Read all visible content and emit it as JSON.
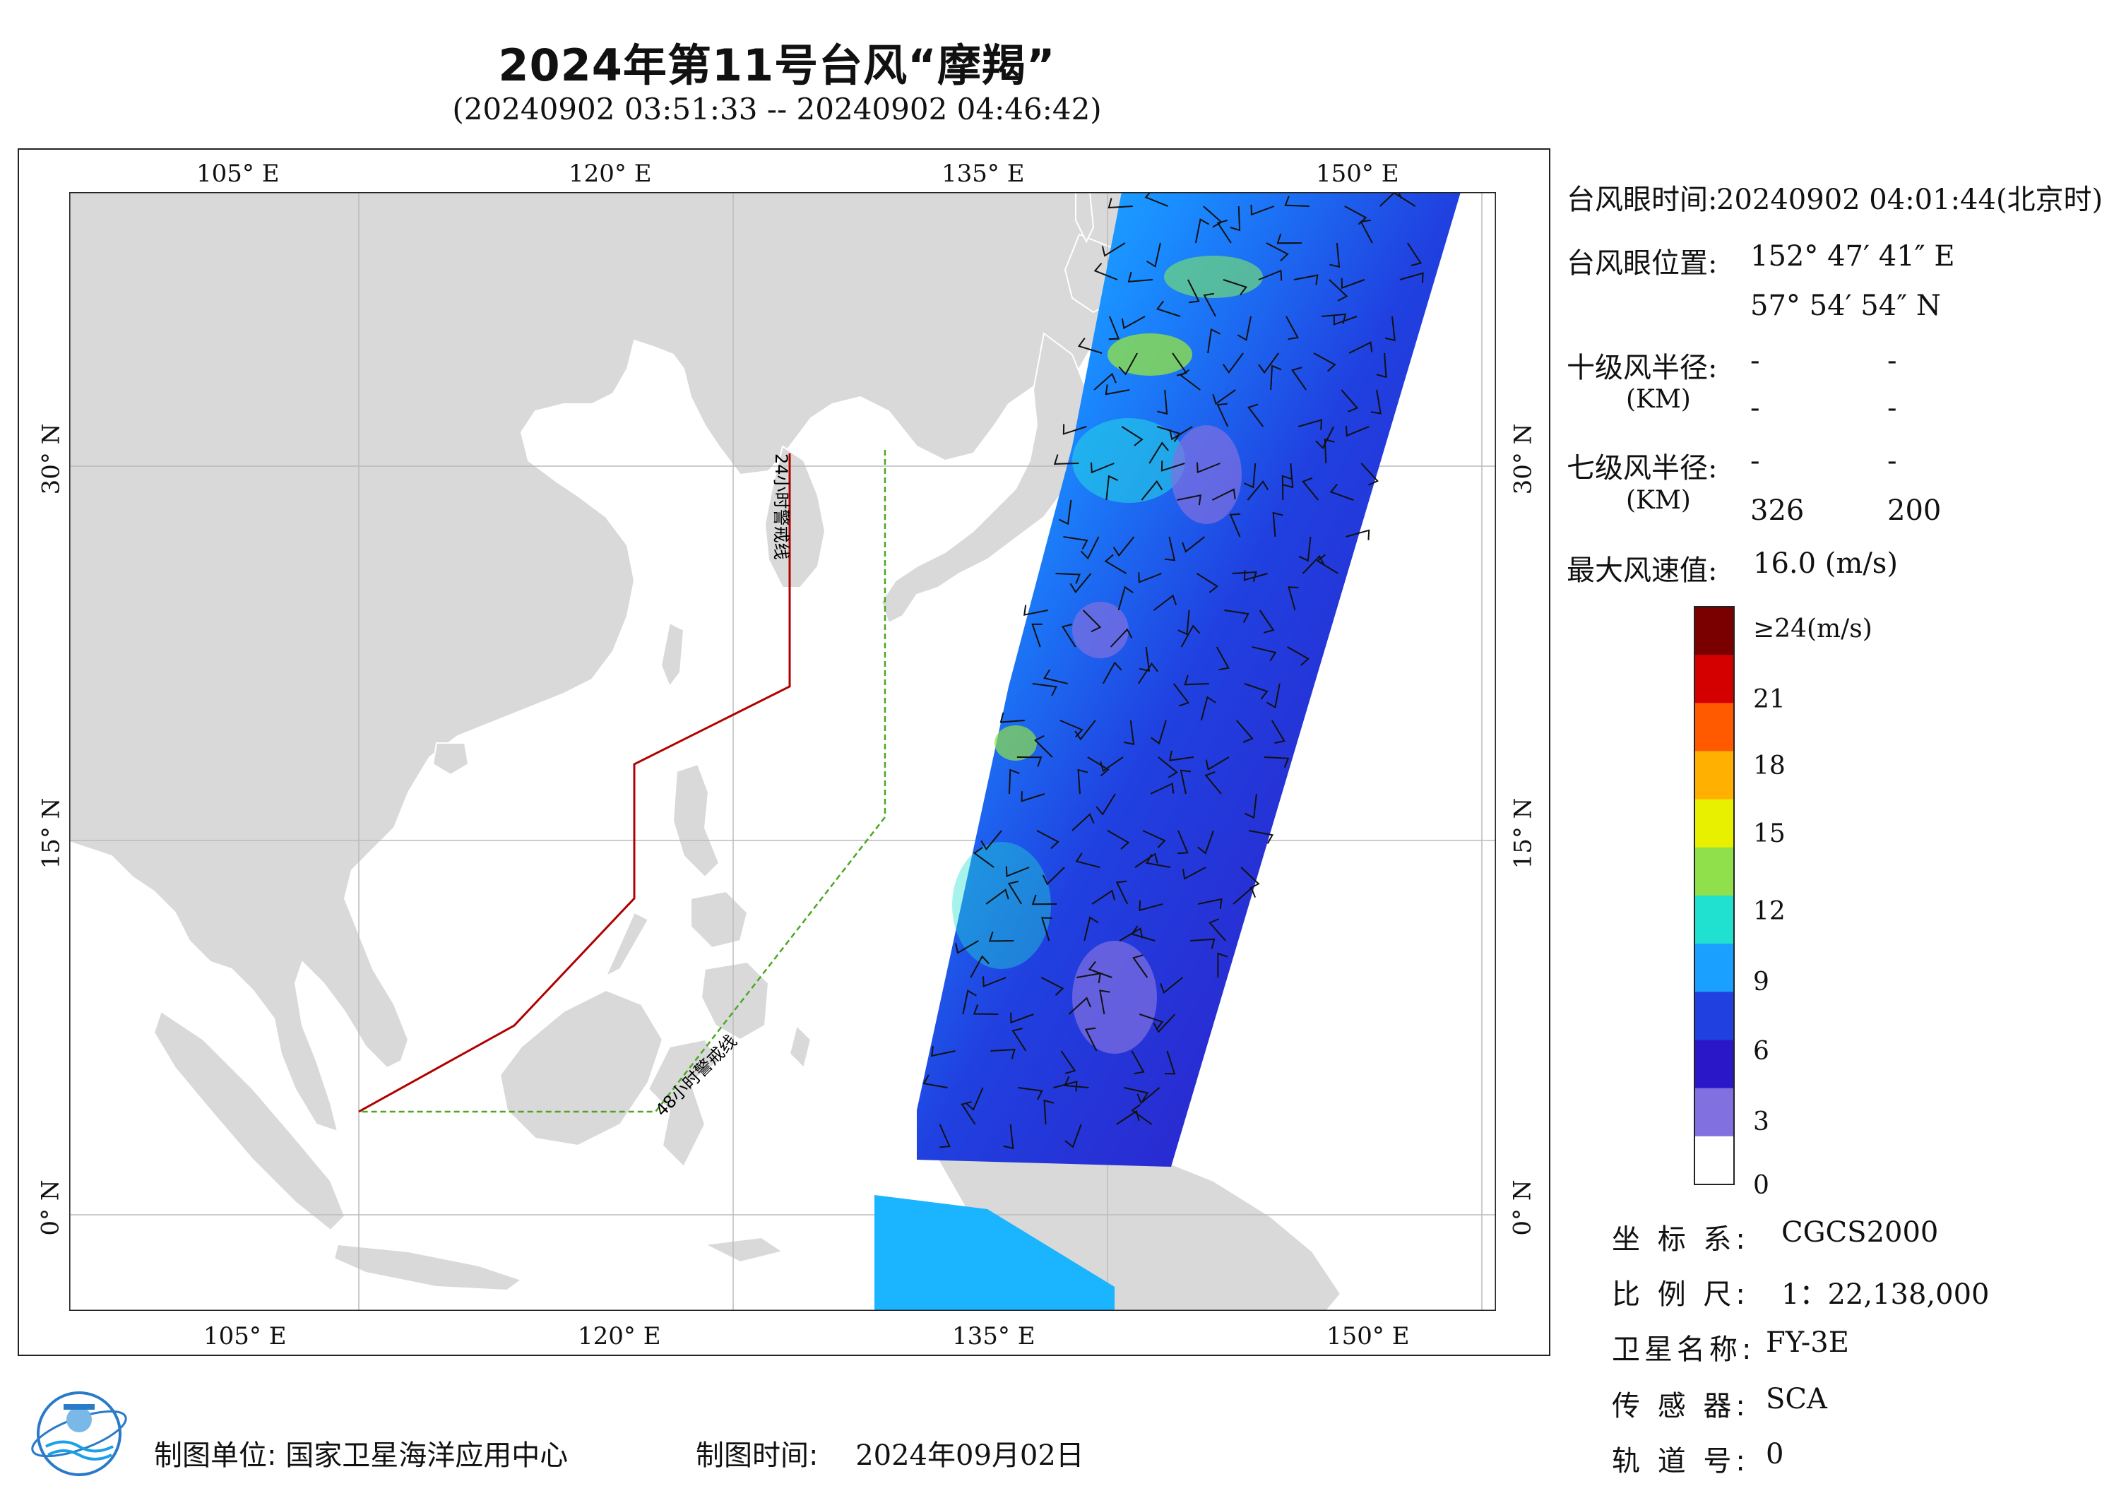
{
  "title": "2024年第11号台风“摩羯”",
  "subtitle": "(20240902 03:51:33 -- 20240902 04:46:42)",
  "map": {
    "lon_ticks_top": [
      "105° E",
      "120° E",
      "135° E",
      "150° E"
    ],
    "lon_ticks_bottom": [
      "105° E",
      "120° E",
      "135° E",
      "150° E"
    ],
    "lat_ticks_left": [
      "30° N",
      "15° N",
      "0° N"
    ],
    "lat_ticks_right": [
      "30° N",
      "15° N",
      "0° N"
    ],
    "warning_24h_label": "24小时警戒线",
    "warning_48h_label": "48小时警戒线",
    "colors": {
      "land": "#d9d9d9",
      "sea": "#ffffff",
      "warning_24h": "#b00000",
      "warning_48h": "#4aa820",
      "wind_low": "#3a2bd6",
      "wind_mid": "#1ec8ff",
      "wind_high": "#f4e41c"
    }
  },
  "typhoon_info": {
    "eye_time_label": "台风眼时间:",
    "eye_time_value": "20240902 04:01:44(北京时)",
    "eye_pos_label": "台风眼位置:",
    "eye_lon": "152° 47′ 41″ E",
    "eye_lat": "57° 54′ 54″ N",
    "r10_label": "十级风半径:",
    "r10_unit": "(KM)",
    "r10_vals": [
      "-",
      "-",
      "-",
      "-"
    ],
    "r7_label": "七级风半径:",
    "r7_unit": "(KM)",
    "r7_vals": [
      "-",
      "-",
      "326",
      "200"
    ],
    "max_wind_label": "最大风速值:",
    "max_wind_value": "16.0  (m/s)"
  },
  "colorbar": {
    "labels": [
      "≥24(m/s)",
      "21",
      "18",
      "15",
      "12",
      "9",
      "6",
      "3",
      "0"
    ],
    "colors": [
      "#7a0000",
      "#d40000",
      "#ff5a00",
      "#ffb000",
      "#e8f000",
      "#8fe04a",
      "#20e0d0",
      "#1aa0ff",
      "#2040e0",
      "#2a18c8",
      "#8070e0",
      "#ffffff"
    ]
  },
  "metadata": {
    "crs_label": "坐 标 系:",
    "crs_value": "CGCS2000",
    "scale_label": "比 例 尺:",
    "scale_value": "1：22,138,000",
    "satellite_label": "卫星名称:",
    "satellite_value": "FY-3E",
    "sensor_label": "传 感 器:",
    "sensor_value": "SCA",
    "orbit_label": "轨 道 号:",
    "orbit_value": "0"
  },
  "footer": {
    "unit_label": "制图单位:",
    "unit_value": "国家卫星海洋应用中心",
    "time_label": "制图时间:",
    "time_value": "2024年09月02日"
  }
}
